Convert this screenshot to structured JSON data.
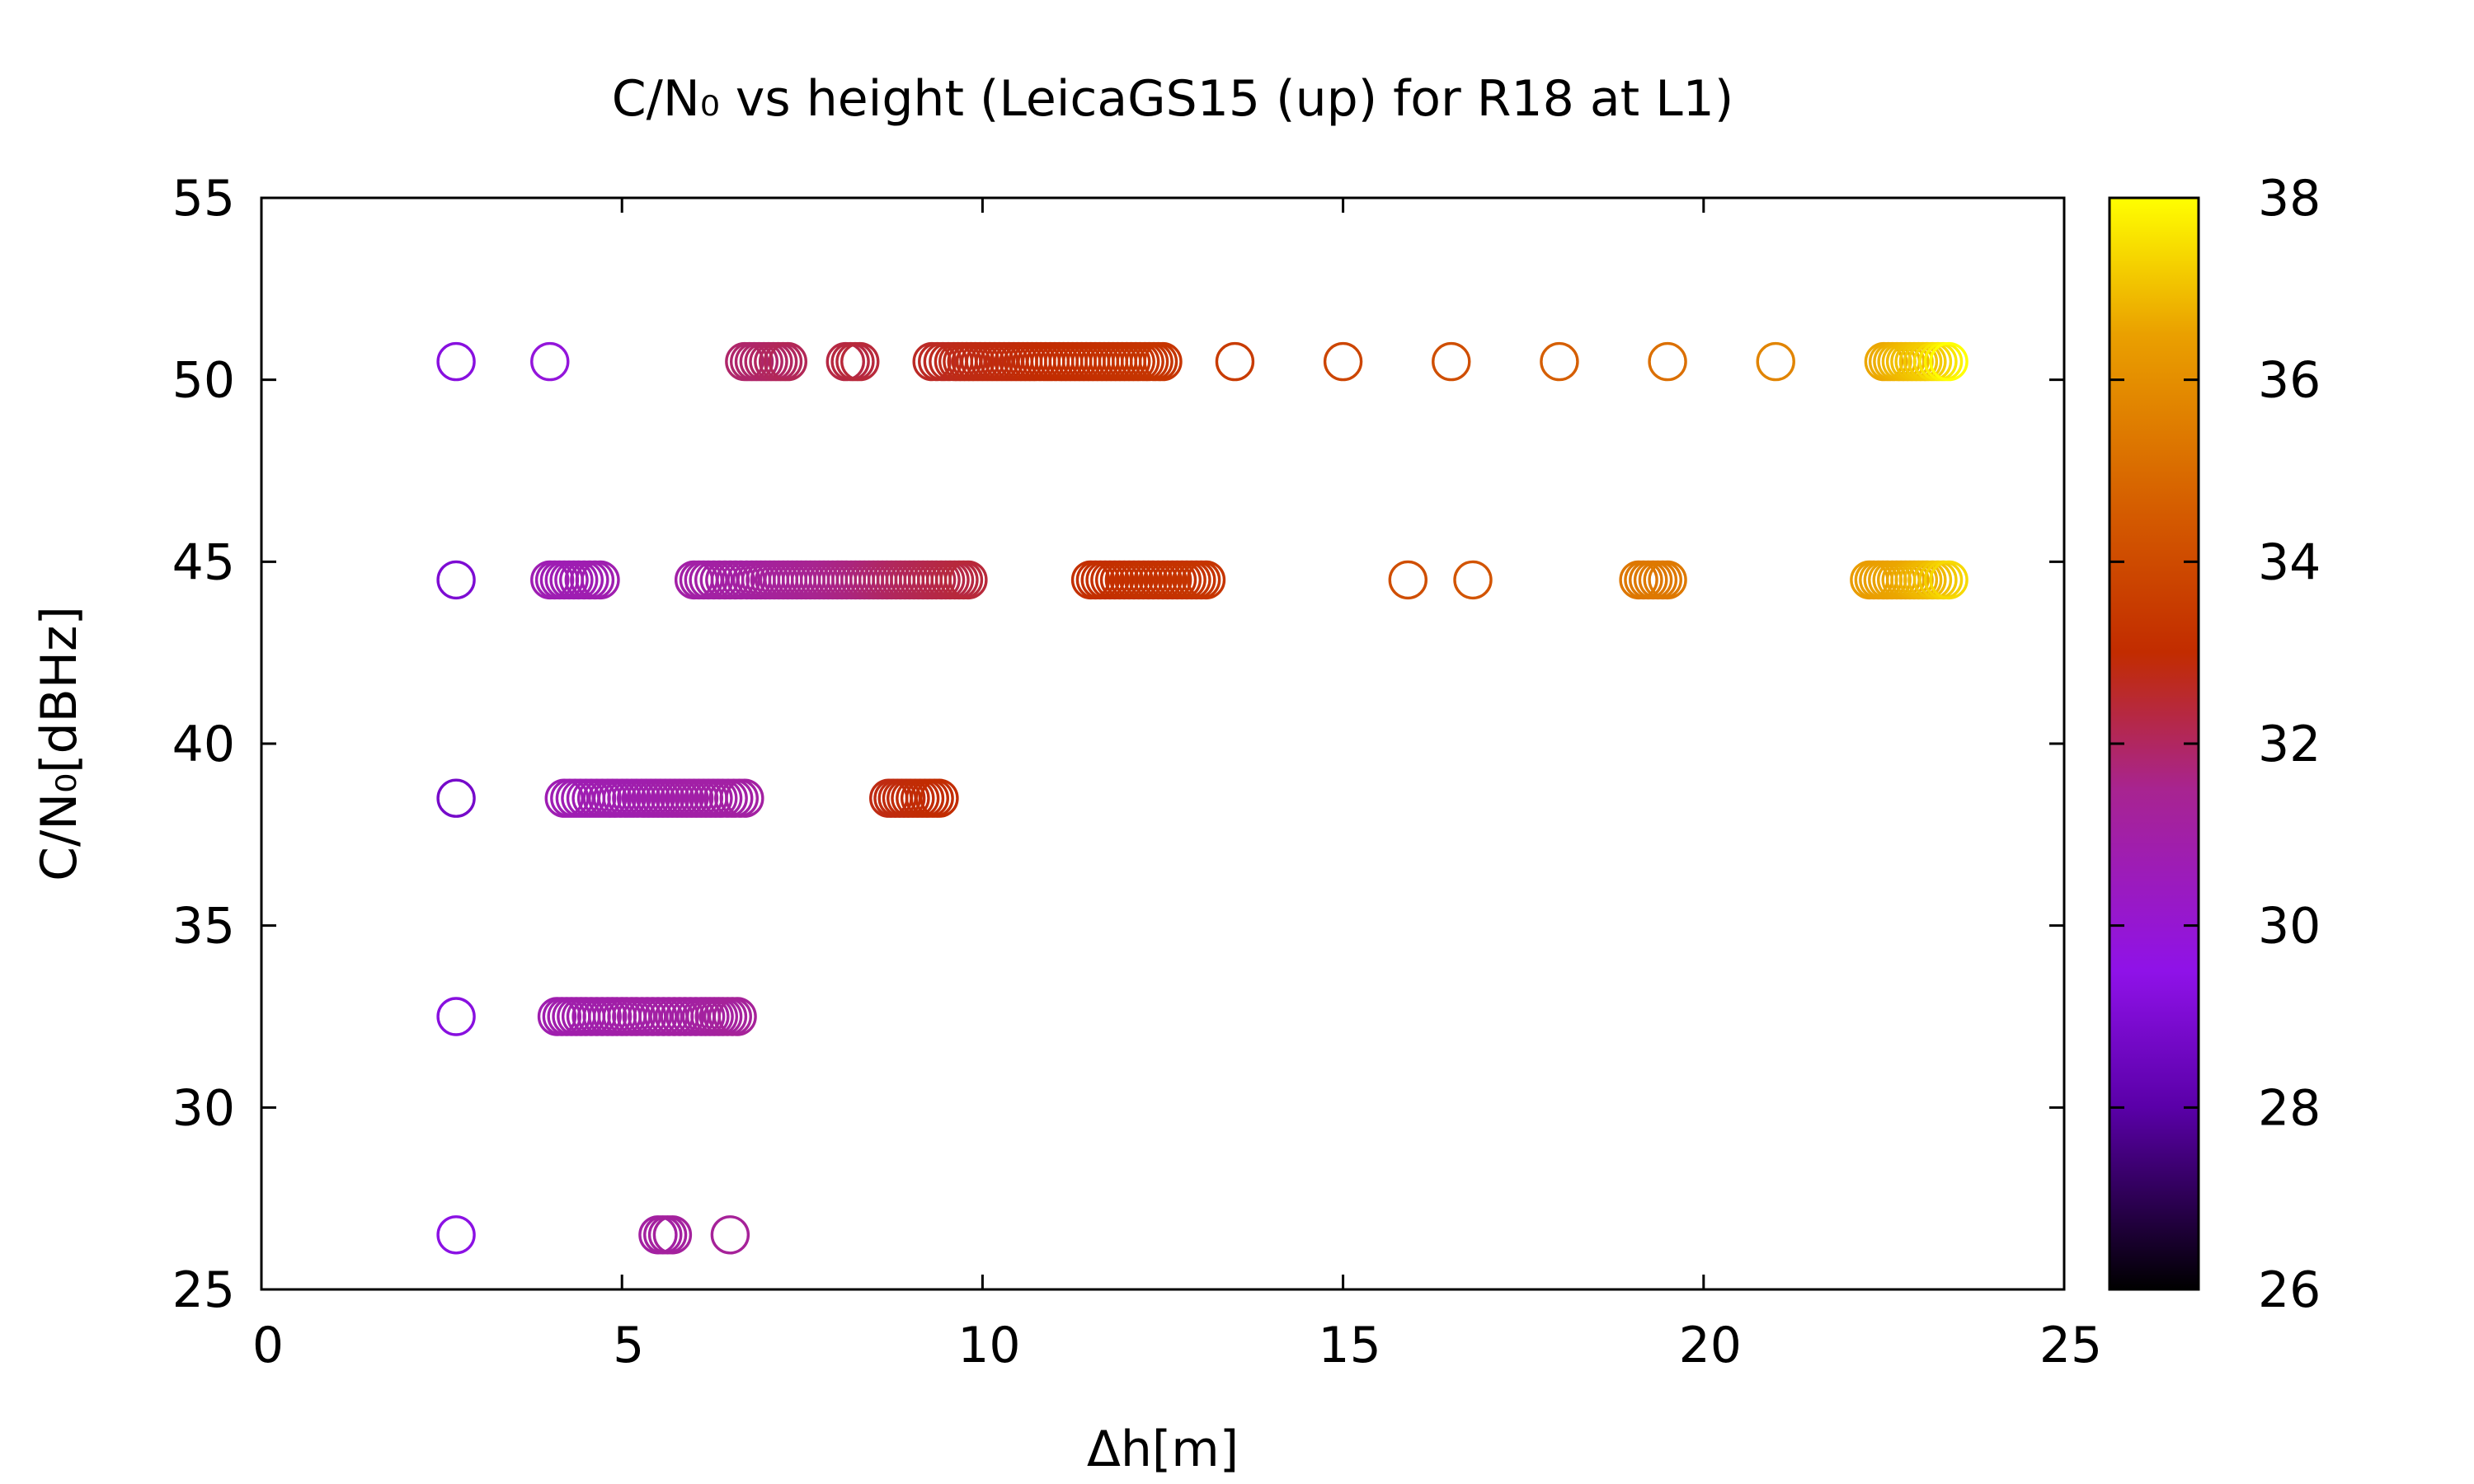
{
  "chart_data": {
    "type": "scatter",
    "title": "C/N₀ vs height (LeicaGS15 (up) for R18 at L1)",
    "xlabel": "Δh[m]",
    "ylabel": "C/N₀[dBHz]",
    "xlim": [
      0,
      25
    ],
    "ylim": [
      25,
      55
    ],
    "xticks": [
      0,
      5,
      10,
      15,
      20,
      25
    ],
    "yticks": [
      25,
      30,
      35,
      40,
      45,
      50,
      55
    ],
    "grid": false,
    "marker": "open-circle",
    "colorbar": {
      "range": [
        26,
        38
      ],
      "ticks": [
        26,
        28,
        30,
        32,
        34,
        36,
        38
      ],
      "palette": [
        {
          "value": 26,
          "color": "#000000"
        },
        {
          "value": 28,
          "color": "#5a00a8"
        },
        {
          "value": 29.5,
          "color": "#8f12e8"
        },
        {
          "value": 31.5,
          "color": "#a82490"
        },
        {
          "value": 33,
          "color": "#c22c00"
        },
        {
          "value": 34.5,
          "color": "#d45a00"
        },
        {
          "value": 36.5,
          "color": "#eaa000"
        },
        {
          "value": 38,
          "color": "#ffff00"
        }
      ]
    },
    "series": [
      {
        "y": 50.5,
        "points": [
          [
            2.7,
            29.3
          ],
          [
            4.0,
            29.8
          ],
          [
            6.7,
            31.9
          ],
          [
            6.9,
            31.9
          ],
          [
            7.1,
            32.0
          ],
          [
            7.3,
            32.1
          ],
          [
            8.1,
            32.3
          ],
          [
            8.3,
            32.4
          ],
          [
            9.3,
            32.6
          ],
          [
            9.6,
            32.7
          ],
          [
            9.9,
            32.8
          ],
          [
            10.5,
            32.9
          ],
          [
            11.0,
            33.0
          ],
          [
            11.5,
            33.1
          ],
          [
            12.0,
            33.2
          ],
          [
            12.5,
            33.3
          ],
          [
            13.5,
            33.5
          ],
          [
            15.0,
            33.8
          ],
          [
            16.5,
            34.1
          ],
          [
            18.0,
            34.6
          ],
          [
            19.5,
            35.1
          ],
          [
            21.0,
            35.7
          ],
          [
            22.5,
            36.6
          ],
          [
            23.1,
            37.2
          ],
          [
            23.4,
            38.0
          ]
        ]
      },
      {
        "y": 44.5,
        "points": [
          [
            2.7,
            29.0
          ],
          [
            4.0,
            30.7
          ],
          [
            4.4,
            30.7
          ],
          [
            4.7,
            30.8
          ],
          [
            6.0,
            31.0
          ],
          [
            6.2,
            31.0
          ],
          [
            6.5,
            31.1
          ],
          [
            6.8,
            31.1
          ],
          [
            7.3,
            31.3
          ],
          [
            7.8,
            31.5
          ],
          [
            8.3,
            31.7
          ],
          [
            8.8,
            32.0
          ],
          [
            9.3,
            32.2
          ],
          [
            9.8,
            32.4
          ],
          [
            11.5,
            33.1
          ],
          [
            11.9,
            33.1
          ],
          [
            12.3,
            33.2
          ],
          [
            12.7,
            33.2
          ],
          [
            13.1,
            33.3
          ],
          [
            15.9,
            34.1
          ],
          [
            16.8,
            34.3
          ],
          [
            19.1,
            35.3
          ],
          [
            19.5,
            35.4
          ],
          [
            22.3,
            36.4
          ],
          [
            22.8,
            36.6
          ],
          [
            23.1,
            36.9
          ],
          [
            23.4,
            37.4
          ]
        ]
      },
      {
        "y": 38.5,
        "points": [
          [
            2.7,
            28.8
          ],
          [
            4.2,
            30.7
          ],
          [
            4.5,
            30.7
          ],
          [
            4.8,
            30.8
          ],
          [
            5.2,
            30.8
          ],
          [
            5.6,
            30.9
          ],
          [
            6.0,
            31.0
          ],
          [
            6.4,
            31.0
          ],
          [
            6.7,
            31.1
          ],
          [
            8.7,
            32.8
          ],
          [
            9.0,
            32.9
          ],
          [
            9.4,
            33.0
          ]
        ]
      },
      {
        "y": 32.5,
        "points": [
          [
            2.7,
            29.3
          ],
          [
            4.1,
            30.8
          ],
          [
            4.5,
            30.9
          ],
          [
            4.8,
            30.9
          ],
          [
            5.2,
            31.0
          ],
          [
            5.5,
            31.0
          ],
          [
            5.8,
            31.1
          ],
          [
            6.1,
            31.1
          ],
          [
            6.4,
            31.2
          ],
          [
            6.6,
            31.3
          ]
        ]
      },
      {
        "y": 26.5,
        "points": [
          [
            2.7,
            29.4
          ],
          [
            5.5,
            31.1
          ],
          [
            5.7,
            31.2
          ],
          [
            6.5,
            31.3
          ]
        ]
      }
    ]
  }
}
